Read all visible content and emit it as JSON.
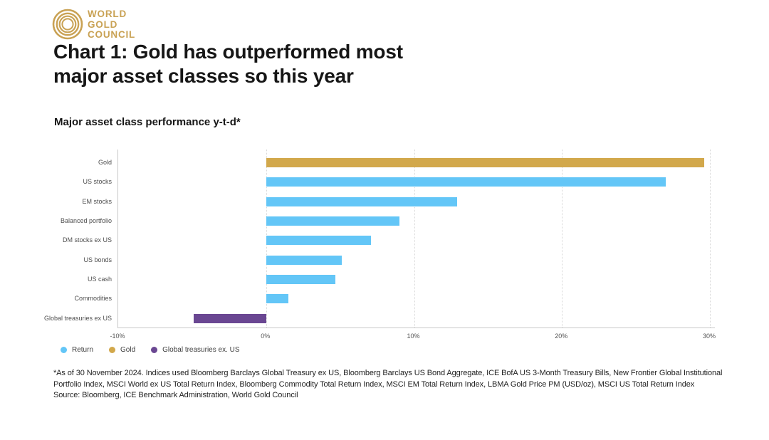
{
  "brand": {
    "wordmark": [
      "WORLD",
      "GOLD",
      "COUNCIL"
    ]
  },
  "header": {
    "title_line1": "Chart 1: Gold has outperformed most",
    "title_line2": "major asset classes so this year"
  },
  "palette": {
    "return": "#63C6F7",
    "gold": "#D2A84B",
    "treasuries": "#6A4792",
    "logo_gold": "#C9A254",
    "axis": "#C9C9C9",
    "grid": "#D8D8D8"
  },
  "chart_data": {
    "type": "bar",
    "orientation": "horizontal",
    "title": "Major asset class performance y-t-d*",
    "categories": [
      "Gold",
      "US stocks",
      "EM stocks",
      "Balanced portfolio",
      "DM stocks ex US",
      "US bonds",
      "US cash",
      "Commodities",
      "Global treasuries ex US"
    ],
    "values": [
      29.6,
      27.0,
      12.9,
      9.0,
      7.1,
      5.1,
      4.7,
      1.5,
      -4.9
    ],
    "unit": "%",
    "bar_color_keys": [
      "gold",
      "return",
      "return",
      "return",
      "return",
      "return",
      "return",
      "return",
      "treasuries"
    ],
    "xlim": [
      -10,
      30
    ],
    "x_ticks": {
      "labels": [
        "-10%",
        "0%",
        "10%",
        "20%",
        "30%"
      ],
      "values": [
        -10,
        0,
        10,
        20,
        30
      ]
    },
    "grid": "vertical dotted at 0%, 10%, 20%, 30%",
    "legend_position": "bottom-left",
    "legend": [
      {
        "label": "Return",
        "color_key": "return"
      },
      {
        "label": "Gold",
        "color_key": "gold"
      },
      {
        "label": "Global treasuries ex. US",
        "color_key": "treasuries"
      }
    ]
  },
  "footnote": {
    "text": "*As of 30 November 2024. Indices used Bloomberg Barclays Global Treasury ex US, Bloomberg Barclays US Bond Aggregate, ICE BofA US 3-Month Treasury Bills, New Frontier Global Institutional Portfolio Index, MSCI World ex US Total Return Index, Bloomberg Commodity Total Return Index, MSCI EM Total Return Index, LBMA Gold Price PM (USD/oz), MSCI US Total Return Index",
    "source": "Source: Bloomberg, ICE Benchmark Administration, World Gold Council"
  }
}
